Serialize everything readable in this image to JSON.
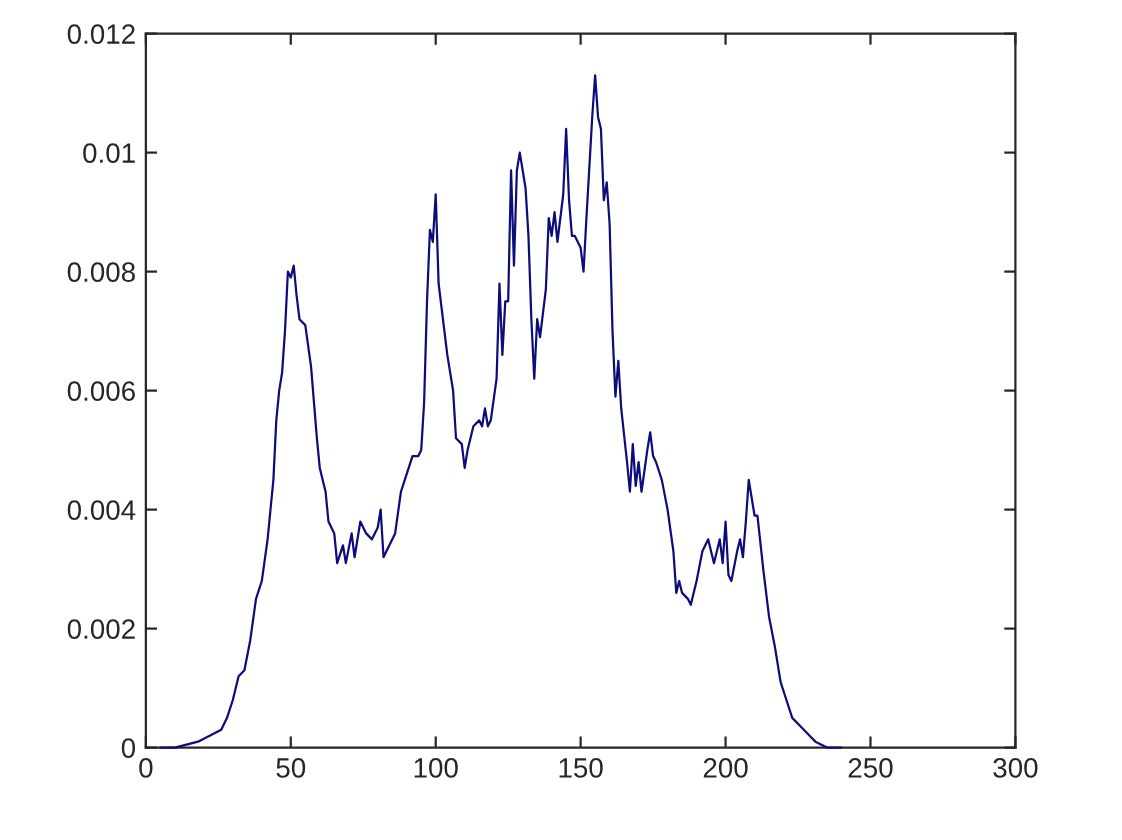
{
  "chart_data": {
    "type": "line",
    "xlim": [
      0,
      300
    ],
    "xticks": [
      0,
      50,
      100,
      150,
      200,
      250,
      300
    ],
    "ylim": [
      0,
      0.012
    ],
    "yticks": [
      0,
      0.002,
      0.004,
      0.006,
      0.008,
      0.01,
      0.012
    ],
    "grid": false,
    "legend": false,
    "marker": "none",
    "line_style": "solid",
    "series": [
      {
        "color": "#0c0c7a",
        "x": [
          5,
          10,
          18,
          22,
          26,
          28,
          30,
          32,
          34,
          36,
          38,
          40,
          42,
          44,
          45,
          46,
          47,
          48,
          49,
          50,
          51,
          52,
          53,
          55,
          57,
          59,
          60,
          62,
          63,
          65,
          66,
          68,
          69,
          71,
          72,
          74,
          76,
          78,
          80,
          81,
          82,
          84,
          86,
          88,
          90,
          92,
          94,
          95,
          96,
          97,
          98,
          99,
          100,
          101,
          102,
          104,
          106,
          107,
          109,
          110,
          111,
          113,
          115,
          116,
          117,
          118,
          119,
          121,
          122,
          123,
          124,
          125,
          126,
          127,
          128,
          129,
          131,
          132,
          133,
          134,
          135,
          136,
          138,
          139,
          140,
          141,
          142,
          144,
          145,
          146,
          147,
          148,
          150,
          151,
          152,
          154,
          155,
          156,
          157,
          158,
          159,
          160,
          161,
          162,
          163,
          164,
          166,
          167,
          168,
          169,
          170,
          171,
          173,
          174,
          175,
          176,
          178,
          180,
          182,
          183,
          184,
          185,
          187,
          188,
          190,
          192,
          194,
          196,
          198,
          199,
          200,
          201,
          202,
          204,
          205,
          206,
          207,
          208,
          209,
          210,
          211,
          213,
          215,
          217,
          219,
          221,
          223,
          225,
          227,
          229,
          231,
          235,
          240
        ],
        "values": [
          0,
          0,
          0.0001,
          0.0002,
          0.0003,
          0.0005,
          0.0008,
          0.0012,
          0.0013,
          0.0018,
          0.0025,
          0.0028,
          0.0035,
          0.0045,
          0.0055,
          0.006,
          0.0063,
          0.007,
          0.008,
          0.0079,
          0.0081,
          0.0076,
          0.0072,
          0.0071,
          0.0064,
          0.0052,
          0.0047,
          0.0043,
          0.0038,
          0.0036,
          0.0031,
          0.0034,
          0.0031,
          0.0036,
          0.0032,
          0.0038,
          0.0036,
          0.0035,
          0.0037,
          0.004,
          0.0032,
          0.0034,
          0.0036,
          0.0043,
          0.0046,
          0.0049,
          0.0049,
          0.005,
          0.0058,
          0.0075,
          0.0087,
          0.0085,
          0.0093,
          0.0078,
          0.0074,
          0.0066,
          0.006,
          0.0052,
          0.0051,
          0.0047,
          0.005,
          0.0054,
          0.0055,
          0.0054,
          0.0057,
          0.0054,
          0.0055,
          0.0062,
          0.0078,
          0.0066,
          0.0075,
          0.0075,
          0.0097,
          0.0081,
          0.0097,
          0.01,
          0.0094,
          0.0086,
          0.0072,
          0.0062,
          0.0072,
          0.0069,
          0.0077,
          0.0089,
          0.0086,
          0.009,
          0.0085,
          0.0093,
          0.0104,
          0.0092,
          0.0086,
          0.0086,
          0.0084,
          0.008,
          0.0089,
          0.0106,
          0.0113,
          0.0106,
          0.0104,
          0.0092,
          0.0095,
          0.0088,
          0.007,
          0.0059,
          0.0065,
          0.0057,
          0.0048,
          0.0043,
          0.0051,
          0.0044,
          0.0048,
          0.0043,
          0.005,
          0.0053,
          0.0049,
          0.0048,
          0.0045,
          0.004,
          0.0033,
          0.0026,
          0.0028,
          0.0026,
          0.0025,
          0.0024,
          0.0028,
          0.0033,
          0.0035,
          0.0031,
          0.0035,
          0.0031,
          0.0038,
          0.0029,
          0.0028,
          0.0033,
          0.0035,
          0.0032,
          0.0038,
          0.0045,
          0.0042,
          0.0039,
          0.0039,
          0.003,
          0.0022,
          0.0017,
          0.0011,
          0.0008,
          0.0005,
          0.0004,
          0.0003,
          0.0002,
          0.0001,
          0,
          0
        ]
      }
    ]
  }
}
